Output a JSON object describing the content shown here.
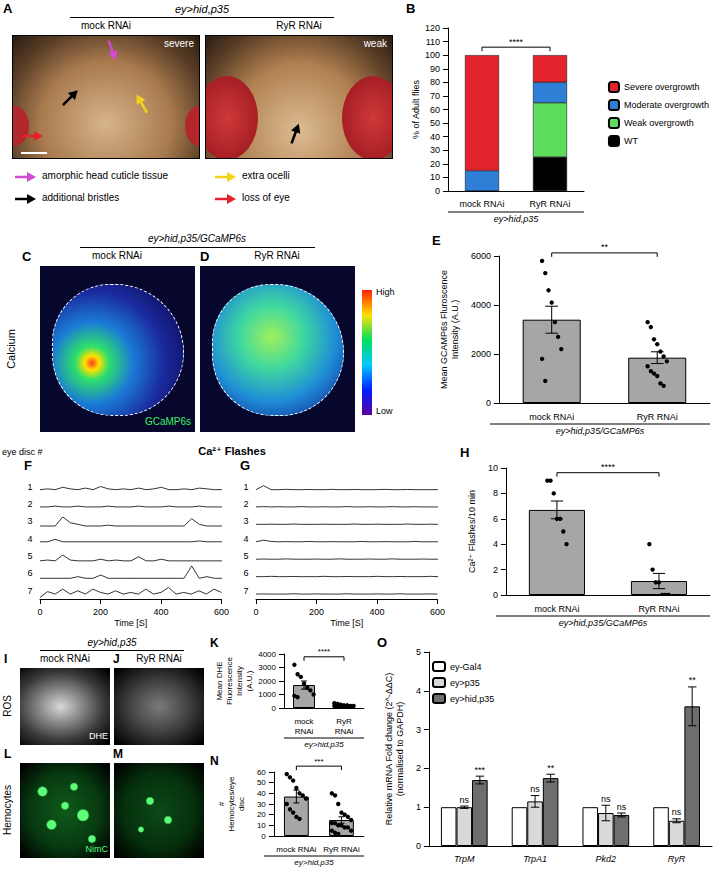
{
  "chart_data": [
    {
      "panel": "B",
      "type": "bar",
      "stacked": true,
      "y_label": "% of Adult flies",
      "categories": [
        "mock RNAi",
        "RyR RNAi"
      ],
      "group_label": "ey>hid,p35",
      "ylim": [
        0,
        120
      ],
      "yticks": [
        0,
        10,
        20,
        30,
        40,
        50,
        60,
        70,
        80,
        90,
        100,
        110,
        120
      ],
      "legend": "right",
      "significance": "****",
      "series": [
        {
          "name": "WT",
          "color": "#000000",
          "values": [
            0,
            25
          ]
        },
        {
          "name": "Weak overgrowth",
          "color": "#5ddc5d",
          "values": [
            0,
            40
          ]
        },
        {
          "name": "Moderate overgrowth",
          "color": "#2f7fd6",
          "values": [
            15,
            15
          ]
        },
        {
          "name": "Severe overgrowth",
          "color": "#e3232b",
          "values": [
            85,
            20
          ]
        }
      ]
    },
    {
      "panel": "E",
      "type": "bar",
      "y_label": "Mean GCAMP6s Fluroscence Intensity (A.U.)",
      "categories": [
        "mock RNAi",
        "RyR RNAi"
      ],
      "group_label": "ey>hid,p35/GCaMP6s",
      "values": [
        3400,
        1850
      ],
      "errors": [
        550,
        240
      ],
      "points": [
        [
          5800,
          5300,
          4600,
          4100,
          3300,
          2700,
          2200,
          1800,
          900
        ],
        [
          3300,
          3100,
          2600,
          2400,
          2100,
          1900,
          1700,
          1500,
          1300,
          1200,
          1100,
          800,
          700
        ]
      ],
      "ylim": [
        0,
        6000
      ],
      "yticks": [
        0,
        2000,
        4000,
        6000
      ],
      "significance": "**",
      "color": "#a6a6a6"
    },
    {
      "panel": "F",
      "type": "line",
      "title": "Ca²⁺ Flashes",
      "trace_label_title": "eye disc #",
      "x_label": "Time [S]",
      "tick_labels": "x",
      "x": [
        0,
        25,
        50,
        75,
        100,
        125,
        150,
        175,
        200,
        225,
        250,
        275,
        300,
        325,
        350,
        375,
        400,
        425,
        450,
        475,
        500,
        525,
        550,
        575,
        600
      ],
      "xlim": [
        0,
        600
      ],
      "xticks": [
        0,
        200,
        400,
        600
      ],
      "ylim": [
        0,
        1
      ],
      "series": [
        {
          "label": "1",
          "values": [
            0.3,
            0.35,
            0.3,
            0.45,
            0.35,
            0.3,
            0.4,
            0.3,
            0.5,
            0.35,
            0.3,
            0.35,
            0.3,
            0.4,
            0.3,
            0.35,
            0.45,
            0.3,
            0.3,
            0.35,
            0.3,
            0.4,
            0.35,
            0.3,
            0.3
          ]
        },
        {
          "label": "2",
          "values": [
            0.3,
            0.3,
            0.35,
            0.3,
            0.3,
            0.35,
            0.3,
            0.3,
            0.3,
            0.35,
            0.3,
            0.3,
            0.3,
            0.35,
            0.3,
            0.3,
            0.3,
            0.35,
            0.3,
            0.3,
            0.3,
            0.35,
            0.3,
            0.3,
            0.3
          ]
        },
        {
          "label": "3",
          "values": [
            0.2,
            0.2,
            0.2,
            0.75,
            0.4,
            0.3,
            0.2,
            0.2,
            0.2,
            0.25,
            0.2,
            0.2,
            0.2,
            0.2,
            0.2,
            0.2,
            0.2,
            0.2,
            0.2,
            0.2,
            0.65,
            0.3,
            0.2,
            0.2,
            0.2
          ]
        },
        {
          "label": "4",
          "values": [
            0.3,
            0.3,
            0.45,
            0.3,
            0.3,
            0.3,
            0.3,
            0.3,
            0.3,
            0.3,
            0.3,
            0.3,
            0.3,
            0.3,
            0.3,
            0.3,
            0.3,
            0.3,
            0.3,
            0.3,
            0.3,
            0.35,
            0.3,
            0.3,
            0.3
          ]
        },
        {
          "label": "5",
          "values": [
            0.2,
            0.25,
            0.2,
            0.55,
            0.25,
            0.2,
            0.2,
            0.2,
            0.3,
            0.2,
            0.25,
            0.2,
            0.2,
            0.45,
            0.2,
            0.2,
            0.3,
            0.2,
            0.2,
            0.2,
            0.2,
            0.2,
            0.2,
            0.2,
            0.2
          ]
        },
        {
          "label": "6",
          "values": [
            0.2,
            0.2,
            0.2,
            0.2,
            0.2,
            0.3,
            0.2,
            0.2,
            0.4,
            0.2,
            0.2,
            0.2,
            0.2,
            0.2,
            0.2,
            0.2,
            0.2,
            0.2,
            0.2,
            0.2,
            0.95,
            0.2,
            0.3,
            0.2,
            0.2
          ]
        },
        {
          "label": "7",
          "values": [
            0.1,
            0.45,
            0.3,
            0.6,
            0.3,
            0.5,
            0.3,
            0.6,
            0.4,
            0.3,
            0.5,
            0.3,
            0.4,
            0.3,
            0.6,
            0.3,
            0.4,
            0.7,
            0.3,
            0.4,
            0.3,
            0.5,
            0.3,
            0.6,
            0.4
          ]
        }
      ]
    },
    {
      "panel": "G",
      "type": "line",
      "x_label": "Time [S]",
      "tick_labels": "x",
      "x": [
        0,
        25,
        50,
        75,
        100,
        125,
        150,
        175,
        200,
        225,
        250,
        275,
        300,
        325,
        350,
        375,
        400,
        425,
        450,
        475,
        500,
        525,
        550,
        575,
        600
      ],
      "xlim": [
        0,
        600
      ],
      "xticks": [
        0,
        200,
        400,
        600
      ],
      "ylim": [
        0,
        1
      ],
      "series": [
        {
          "label": "1",
          "values": [
            0.3,
            0.55,
            0.3,
            0.3,
            0.32,
            0.3,
            0.3,
            0.31,
            0.3,
            0.3,
            0.32,
            0.3,
            0.3,
            0.31,
            0.3,
            0.3,
            0.3,
            0.32,
            0.3,
            0.3,
            0.31,
            0.3,
            0.3,
            0.3,
            0.3
          ]
        },
        {
          "label": "2",
          "values": [
            0.3,
            0.32,
            0.3,
            0.31,
            0.3,
            0.3,
            0.32,
            0.3,
            0.3,
            0.31,
            0.3,
            0.3,
            0.32,
            0.3,
            0.3,
            0.31,
            0.3,
            0.3,
            0.32,
            0.3,
            0.3,
            0.31,
            0.3,
            0.3,
            0.3
          ]
        },
        {
          "label": "3",
          "values": [
            0.3,
            0.3,
            0.31,
            0.3,
            0.3,
            0.32,
            0.3,
            0.3,
            0.3,
            0.31,
            0.3,
            0.3,
            0.3,
            0.32,
            0.3,
            0.3,
            0.31,
            0.3,
            0.3,
            0.3,
            0.32,
            0.3,
            0.3,
            0.31,
            0.3
          ]
        },
        {
          "label": "4",
          "values": [
            0.3,
            0.4,
            0.32,
            0.3,
            0.31,
            0.3,
            0.3,
            0.32,
            0.3,
            0.3,
            0.31,
            0.3,
            0.3,
            0.3,
            0.32,
            0.3,
            0.3,
            0.31,
            0.3,
            0.3,
            0.3,
            0.32,
            0.3,
            0.3,
            0.3
          ]
        },
        {
          "label": "5",
          "values": [
            0.3,
            0.31,
            0.3,
            0.3,
            0.32,
            0.3,
            0.3,
            0.3,
            0.31,
            0.3,
            0.3,
            0.32,
            0.3,
            0.3,
            0.3,
            0.31,
            0.3,
            0.3,
            0.32,
            0.3,
            0.3,
            0.3,
            0.31,
            0.3,
            0.3
          ]
        },
        {
          "label": "6",
          "values": [
            0.3,
            0.3,
            0.32,
            0.3,
            0.3,
            0.31,
            0.3,
            0.3,
            0.3,
            0.32,
            0.3,
            0.3,
            0.31,
            0.3,
            0.3,
            0.3,
            0.32,
            0.3,
            0.3,
            0.31,
            0.3,
            0.3,
            0.3,
            0.32,
            0.3
          ]
        },
        {
          "label": "7",
          "values": [
            0.3,
            0.31,
            0.3,
            0.3,
            0.3,
            0.32,
            0.3,
            0.3,
            0.31,
            0.3,
            0.3,
            0.3,
            0.32,
            0.3,
            0.3,
            0.3,
            0.31,
            0.3,
            0.3,
            0.32,
            0.3,
            0.3,
            0.3,
            0.31,
            0.3
          ]
        }
      ]
    },
    {
      "panel": "H",
      "type": "bar",
      "y_label": "Ca²⁺ Flashes/10 min",
      "categories": [
        "mock RNAi",
        "RyR RNAi"
      ],
      "group_label": "ey>hid,p35/GCaMP6s",
      "values": [
        6.7,
        1.1
      ],
      "errors": [
        0.7,
        0.6
      ],
      "points": [
        [
          9,
          9,
          8,
          6,
          6,
          5,
          4
        ],
        [
          4,
          2,
          1,
          1,
          0,
          0,
          0
        ]
      ],
      "ylim": [
        0,
        10
      ],
      "yticks": [
        0,
        2,
        4,
        6,
        8,
        10
      ],
      "significance": "****",
      "color": "#a6a6a6"
    },
    {
      "panel": "K",
      "type": "bar",
      "y_label": "Mean DHE Fluorescence Intensity (A.U.)",
      "categories": [
        "mock RNAi",
        "RyR RNAi"
      ],
      "group_label": "ey>hid,p35",
      "values": [
        1700,
        200
      ],
      "errors": [
        300,
        40
      ],
      "points": [
        [
          3200,
          2500,
          2300,
          1800,
          1500,
          1300,
          1000,
          900,
          800
        ],
        [
          350,
          300,
          250,
          200,
          200,
          150,
          150,
          150,
          100,
          100
        ]
      ],
      "ylim": [
        0,
        4000
      ],
      "yticks": [
        0,
        1000,
        2000,
        3000,
        4000
      ],
      "significance": "****",
      "color": "#a6a6a6"
    },
    {
      "panel": "N",
      "type": "bar",
      "y_label": "# Hemocytes/eye disc",
      "categories": [
        "mock RNAi",
        "RyR RNAi"
      ],
      "group_label": "ey>hid,p35",
      "values": [
        37,
        15
      ],
      "errors": [
        6,
        3
      ],
      "points": [
        [
          58,
          55,
          52,
          45,
          40,
          38,
          35,
          30,
          25,
          22,
          18,
          16
        ],
        [
          40,
          38,
          30,
          22,
          20,
          18,
          15,
          12,
          12,
          10,
          10,
          8,
          8,
          5,
          5,
          3,
          2
        ]
      ],
      "ylim": [
        0,
        60
      ],
      "yticks": [
        0,
        10,
        20,
        30,
        40,
        50,
        60
      ],
      "significance": "***",
      "color": "#a6a6a6"
    },
    {
      "panel": "O",
      "type": "bar",
      "y_label": "Relative mRNA Fold change (2^-ΔΔC)",
      "y_label_2": "(normalised to GAPDH)",
      "categories": [
        "TrpM",
        "TrpA1",
        "Pkd2",
        "RyR"
      ],
      "ylim": [
        0,
        5
      ],
      "yticks": [
        0,
        1,
        2,
        3,
        4,
        5
      ],
      "legend": "top-left",
      "series": [
        {
          "name": "ey-Gal4",
          "color": "#ffffff",
          "values": [
            1,
            1,
            1,
            1
          ]
        },
        {
          "name": "ey>p35",
          "color": "#d9d9d9",
          "values": [
            1.0,
            1.15,
            0.85,
            0.65
          ],
          "errors": [
            0.03,
            0.15,
            0.2,
            0.05
          ],
          "significance": [
            "ns",
            "ns",
            "ns",
            "ns"
          ]
        },
        {
          "name": "ey>hid,p35",
          "color": "#6e6e6e",
          "values": [
            1.7,
            1.75,
            0.8,
            3.6
          ],
          "errors": [
            0.1,
            0.1,
            0.05,
            0.5
          ],
          "significance": [
            "***",
            "**",
            "ns",
            "**"
          ]
        }
      ]
    }
  ],
  "image_panels": [
    {
      "panel": "A",
      "group_label": "ey>hid,p35",
      "images": [
        {
          "label": "mock RNAi",
          "phenotype": "severe"
        },
        {
          "label": "RyR RNAi",
          "phenotype": "weak"
        }
      ],
      "key": [
        {
          "text": "amorphic head cuticle tissue",
          "color": "#d24bd2"
        },
        {
          "text": "additional bristles",
          "color": "#000000"
        },
        {
          "text": "extra ocelli",
          "color": "#f2d21b"
        },
        {
          "text": "loss of eye",
          "color": "#e3232b"
        }
      ]
    },
    {
      "panels": [
        "C",
        "D"
      ],
      "group_label": "ey>hid,p35/GCaMP6s",
      "row_label": "Calcium",
      "stain": "GCaMP6s",
      "images": [
        "mock RNAi",
        "RyR RNAi"
      ],
      "colorbar": [
        "High",
        "Low"
      ]
    },
    {
      "panels": [
        "I",
        "J"
      ],
      "group_label": "ey>hid,p35",
      "row_label": "ROS",
      "stain": "DHE",
      "images": [
        "mock RNAi",
        "RyR RNAi"
      ]
    },
    {
      "panels": [
        "L",
        "M"
      ],
      "row_label": "Hemocytes",
      "stain": "NimC"
    }
  ]
}
